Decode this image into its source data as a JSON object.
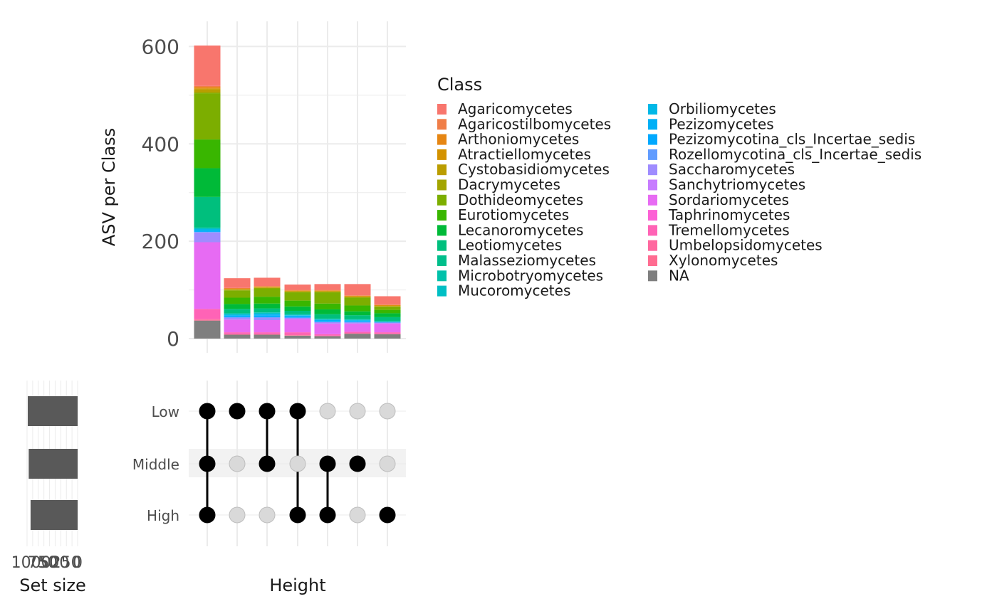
{
  "chart_data": {
    "type": "upset",
    "sets": [
      "Low",
      "Middle",
      "High"
    ],
    "set_size": {
      "label": "Set size",
      "values": [
        1070,
        1050,
        1010
      ],
      "ticks": [
        1000,
        750,
        500,
        250,
        0
      ],
      "tick_labels": [
        "1000",
        "750",
        "500",
        "250",
        "0"
      ]
    },
    "intersections": [
      {
        "members": [
          true,
          true,
          true
        ]
      },
      {
        "members": [
          true,
          false,
          false
        ]
      },
      {
        "members": [
          true,
          true,
          false
        ]
      },
      {
        "members": [
          true,
          false,
          true
        ]
      },
      {
        "members": [
          false,
          true,
          true
        ]
      },
      {
        "members": [
          false,
          true,
          false
        ]
      },
      {
        "members": [
          false,
          false,
          true
        ]
      }
    ],
    "bar": {
      "ylabel": "ASV per Class",
      "xlabel": "Height",
      "ylim": [
        0,
        640
      ],
      "yticks": [
        0,
        200,
        400,
        600
      ],
      "ytick_labels": [
        "0",
        "200",
        "400",
        "600"
      ],
      "grid": true
    },
    "series": [
      {
        "name": "NA",
        "color": "#7F7F7F",
        "values": [
          37,
          8,
          8,
          6,
          5,
          10,
          9
        ]
      },
      {
        "name": "Xylonomycetes",
        "color": "#FF6C91",
        "values": [
          2,
          1,
          1,
          1,
          1,
          1,
          1
        ]
      },
      {
        "name": "Umbelopsidomycetes",
        "color": "#FF689F",
        "values": [
          1,
          0,
          0,
          1,
          0,
          0,
          0
        ]
      },
      {
        "name": "Tremellomycetes",
        "color": "#FF63B6",
        "values": [
          21,
          4,
          4,
          5,
          3,
          3,
          3
        ]
      },
      {
        "name": "Taphrinomycetes",
        "color": "#FC61D5",
        "values": [
          0,
          0,
          0,
          0,
          0,
          0,
          0
        ]
      },
      {
        "name": "Sordariomycetes",
        "color": "#E76BF3",
        "values": [
          137,
          26,
          25,
          27,
          22,
          17,
          18
        ]
      },
      {
        "name": "Sanchytriomycetes",
        "color": "#C77CFF",
        "values": [
          0,
          0,
          0,
          0,
          0,
          0,
          0
        ]
      },
      {
        "name": "Saccharomycetes",
        "color": "#9F8CFF",
        "values": [
          20,
          4,
          5,
          3,
          3,
          2,
          2
        ]
      },
      {
        "name": "Rozellomycotina_cls_Incertae_sedis",
        "color": "#619CFF",
        "values": [
          1,
          1,
          1,
          0,
          0,
          1,
          0
        ]
      },
      {
        "name": "Pezizomycotina_cls_Incertae_sedis",
        "color": "#00A9FF",
        "values": [
          1,
          2,
          3,
          2,
          2,
          2,
          0
        ]
      },
      {
        "name": "Pezizomycetes",
        "color": "#00B0F6",
        "values": [
          2,
          2,
          3,
          2,
          2,
          1,
          1
        ]
      },
      {
        "name": "Orbiliomycetes",
        "color": "#00B8E7",
        "values": [
          3,
          1,
          1,
          1,
          1,
          1,
          0
        ]
      },
      {
        "name": "Mucoromycetes",
        "color": "#00BFC4",
        "values": [
          2,
          2,
          2,
          1,
          1,
          1,
          1
        ]
      },
      {
        "name": "Microbotryomycetes",
        "color": "#00C1AA",
        "values": [
          1,
          1,
          1,
          1,
          1,
          1,
          1
        ]
      },
      {
        "name": "Malasseziomycetes",
        "color": "#00BE8B",
        "values": [
          0,
          0,
          0,
          0,
          0,
          0,
          0
        ]
      },
      {
        "name": "Leotiomycetes",
        "color": "#00BF7D",
        "values": [
          63,
          9,
          8,
          7,
          9,
          8,
          8
        ]
      },
      {
        "name": "Lecanoromycetes",
        "color": "#00BA38",
        "values": [
          59,
          10,
          10,
          9,
          10,
          8,
          8
        ]
      },
      {
        "name": "Eurotiomycetes",
        "color": "#39B600",
        "values": [
          59,
          13,
          14,
          12,
          12,
          12,
          7
        ]
      },
      {
        "name": "Dothideomycetes",
        "color": "#7CAE00",
        "values": [
          95,
          15,
          17,
          17,
          23,
          16,
          6
        ]
      },
      {
        "name": "Dacrymycetes",
        "color": "#A3A500",
        "values": [
          3,
          1,
          1,
          1,
          1,
          1,
          1
        ]
      },
      {
        "name": "Cystobasidiomycetes",
        "color": "#BB9D00",
        "values": [
          5,
          1,
          1,
          1,
          1,
          1,
          1
        ]
      },
      {
        "name": "Atractiellomycetes",
        "color": "#D39200",
        "values": [
          2,
          1,
          1,
          1,
          1,
          1,
          1
        ]
      },
      {
        "name": "Arthoniomycetes",
        "color": "#E68613",
        "values": [
          3,
          1,
          1,
          1,
          1,
          1,
          1
        ]
      },
      {
        "name": "Agaricostilbomycetes",
        "color": "#F07E48",
        "values": [
          2,
          1,
          1,
          1,
          1,
          1,
          1
        ]
      },
      {
        "name": "Agaricomycetes",
        "color": "#F8766D",
        "values": [
          83,
          20,
          17,
          11,
          12,
          23,
          17
        ]
      }
    ],
    "legend": {
      "title": "Class",
      "position": "right",
      "columns": [
        [
          "Agaricomycetes",
          "Agaricostilbomycetes",
          "Arthoniomycetes",
          "Atractiellomycetes",
          "Cystobasidiomycetes",
          "Dacrymycetes",
          "Dothideomycetes",
          "Eurotiomycetes",
          "Lecanoromycetes",
          "Leotiomycetes",
          "Malasseziomycetes",
          "Microbotryomycetes",
          "Mucoromycetes"
        ],
        [
          "Orbiliomycetes",
          "Pezizomycetes",
          "Pezizomycotina_cls_Incertae_sedis",
          "Rozellomycotina_cls_Incertae_sedis",
          "Saccharomycetes",
          "Sanchytriomycetes",
          "Sordariomycetes",
          "Taphrinomycetes",
          "Tremellomycetes",
          "Umbelopsidomycetes",
          "Xylonomycetes",
          "NA"
        ]
      ]
    },
    "colors": {
      "dot_active": "#000000",
      "dot_inactive": "#d9d9d9",
      "set_bar": "#595959",
      "stripe": "#f2f2f2",
      "grid": "#ebebeb"
    }
  }
}
